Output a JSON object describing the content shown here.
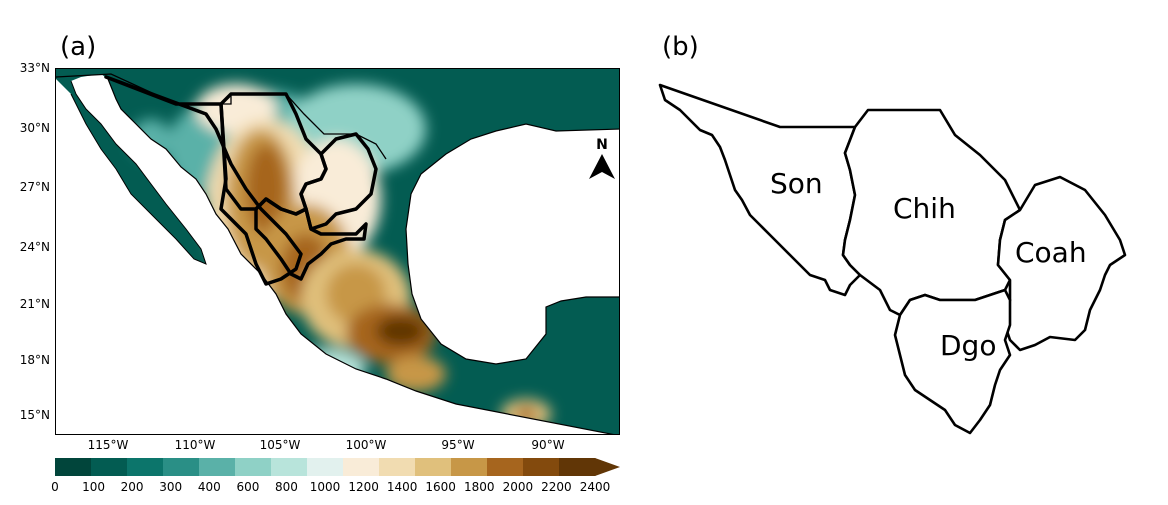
{
  "panels": {
    "a": "(a)",
    "b": "(b)"
  },
  "map_a": {
    "lat_labels": [
      "33°N",
      "30°N",
      "27°N",
      "24°N",
      "21°N",
      "18°N",
      "15°N"
    ],
    "lon_labels": [
      "115°W",
      "110°W",
      "105°W",
      "100°W",
      "95°W",
      "90°W"
    ],
    "north_arrow": "N",
    "colorbar": {
      "ticks": [
        "0",
        "100",
        "200",
        "300",
        "400",
        "600",
        "800",
        "1000",
        "1200",
        "1400",
        "1600",
        "1800",
        "2000",
        "2200",
        "2400"
      ],
      "colors": [
        "#01453b",
        "#035c52",
        "#0c756b",
        "#2a8f86",
        "#5ab1a8",
        "#8fd1c6",
        "#b8e4db",
        "#e2f1ee",
        "#f9ecd8",
        "#f1dcb1",
        "#e0c07c",
        "#c79747",
        "#a6651e",
        "#834a0d",
        "#613606"
      ]
    }
  },
  "map_b": {
    "states": [
      {
        "name": "Son"
      },
      {
        "name": "Chih"
      },
      {
        "name": "Coah"
      },
      {
        "name": "Dgo"
      }
    ]
  }
}
